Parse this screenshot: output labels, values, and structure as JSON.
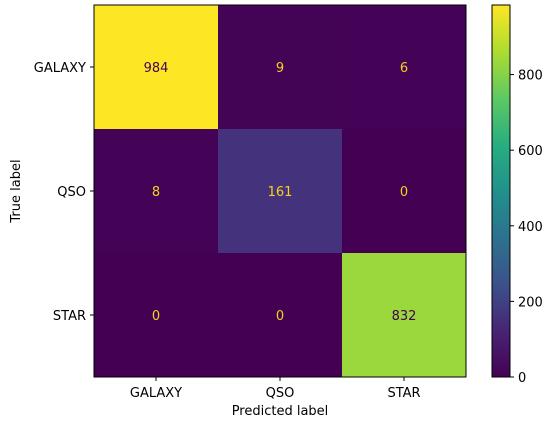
{
  "chart_data": {
    "type": "heatmap",
    "x_categories": [
      "GALAXY",
      "QSO",
      "STAR"
    ],
    "y_categories": [
      "GALAXY",
      "QSO",
      "STAR"
    ],
    "values": [
      [
        984,
        9,
        6
      ],
      [
        8,
        161,
        0
      ],
      [
        0,
        0,
        832
      ]
    ],
    "xlabel": "Predicted label",
    "ylabel": "True label",
    "colormap": "viridis",
    "colorbar": {
      "min": 0,
      "max": 984,
      "ticks": [
        0,
        200,
        400,
        600,
        800
      ]
    },
    "text_colors": {
      "on_dark": "#f5d31d",
      "on_light": "#440154"
    },
    "grid": false
  }
}
